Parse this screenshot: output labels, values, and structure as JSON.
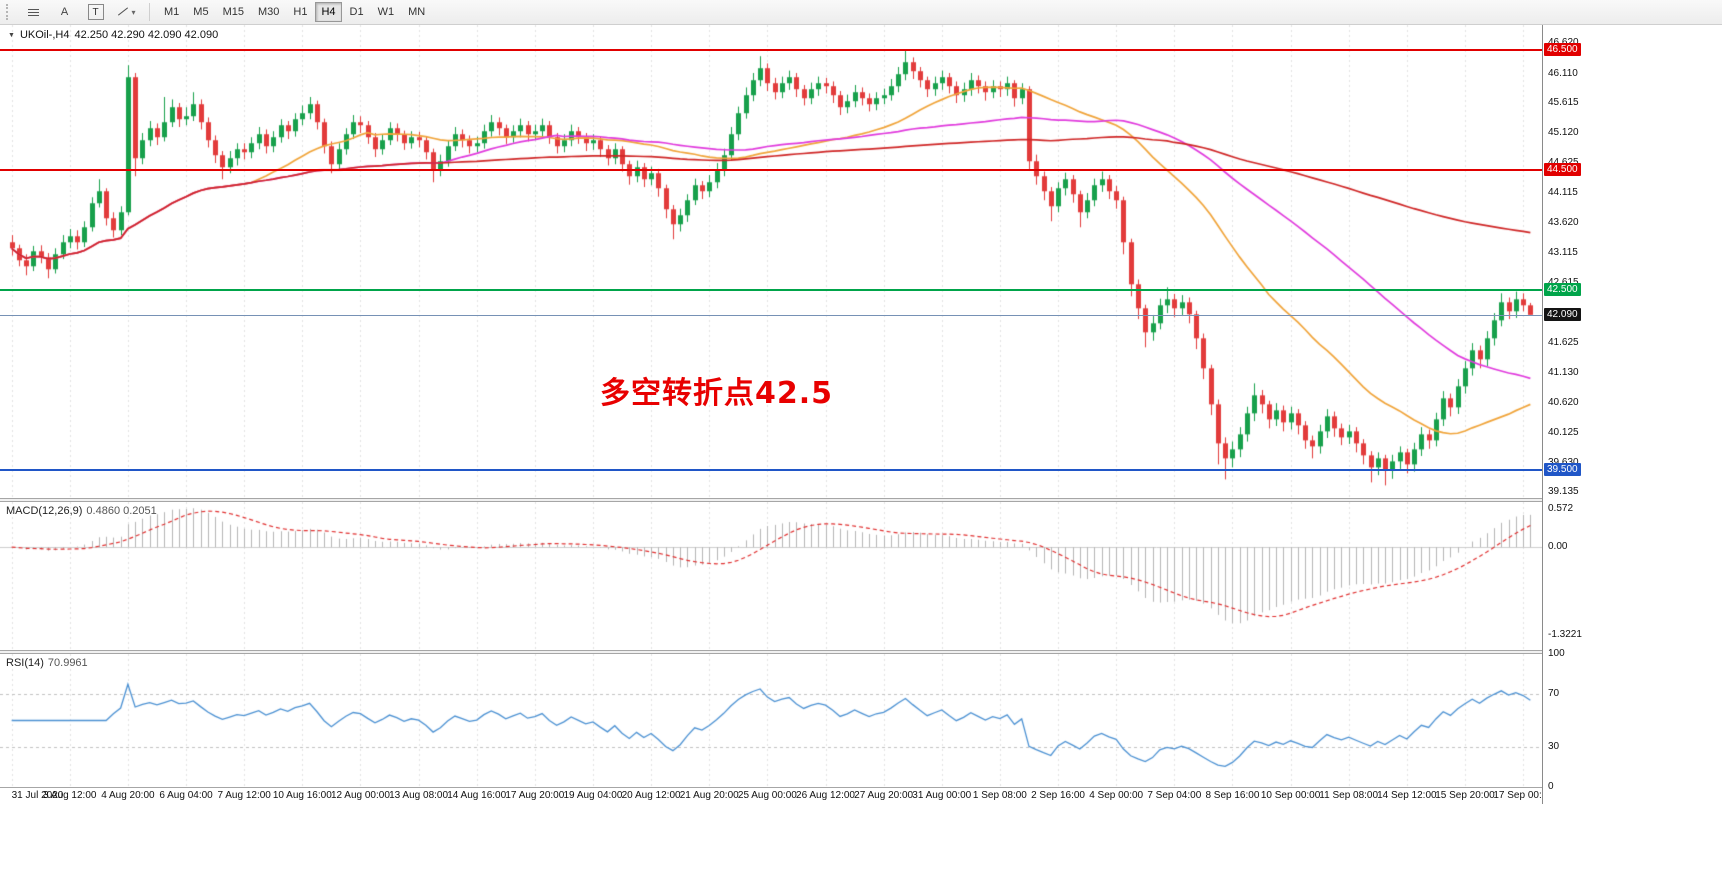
{
  "toolbar": {
    "tool_a_label": "A",
    "tool_t_label": "T",
    "timeframes": [
      "M1",
      "M5",
      "M15",
      "M30",
      "H1",
      "H4",
      "D1",
      "W1",
      "MN"
    ],
    "active_timeframe": "H4",
    "icons": [
      "lines-icon",
      "text-a-icon",
      "text-label-icon",
      "trendline-icon",
      "chevron-down-icon"
    ]
  },
  "header": {
    "dropdown_glyph": "▼",
    "symbol": "UKOil-,H4",
    "quote": "42.250 42.290 42.090 42.090"
  },
  "annotation": {
    "text": "多空转折点42.5",
    "color": "#e80000"
  },
  "chart_data": {
    "type": "candlestick",
    "symbol": "UKOil-",
    "timeframe": "H4",
    "quote": {
      "open": 42.25,
      "high": 42.29,
      "low": 42.09,
      "close": 42.09
    },
    "ylim": [
      39.04,
      46.92
    ],
    "bars_per_label": 8,
    "x_labels": [
      "31 Jul 2020",
      "3 Aug 12:00",
      "4 Aug 20:00",
      "6 Aug 04:00",
      "7 Aug 12:00",
      "10 Aug 16:00",
      "12 Aug 00:00",
      "13 Aug 08:00",
      "14 Aug 16:00",
      "17 Aug 20:00",
      "19 Aug 04:00",
      "20 Aug 12:00",
      "21 Aug 20:00",
      "25 Aug 00:00",
      "26 Aug 12:00",
      "27 Aug 20:00",
      "31 Aug 00:00",
      "1 Sep 08:00",
      "2 Sep 16:00",
      "4 Sep 00:00",
      "7 Sep 04:00",
      "8 Sep 16:00",
      "10 Sep 00:00",
      "11 Sep 08:00",
      "14 Sep 12:00",
      "15 Sep 20:00",
      "17 Sep 00:00"
    ],
    "y_ticks": [
      "46.620",
      "46.110",
      "45.615",
      "45.120",
      "44.625",
      "44.115",
      "43.620",
      "43.115",
      "42.615",
      "41.625",
      "41.130",
      "40.620",
      "40.125",
      "39.630",
      "39.135"
    ],
    "levels": [
      {
        "text": "46.500",
        "value": 46.5,
        "color": "#e10000"
      },
      {
        "text": "44.500",
        "value": 44.5,
        "color": "#e10000"
      },
      {
        "text": "42.500",
        "value": 42.5,
        "color": "#00a44a"
      },
      {
        "text": "39.500",
        "value": 39.5,
        "color": "#2056c7"
      }
    ],
    "price_marker": {
      "text": "42.090",
      "value": 42.09,
      "line_color": "#7691b5",
      "badge_color": "#141414"
    },
    "colors": {
      "up": "#17a04b",
      "down": "#e23b3b",
      "grid": "#e3e3e3"
    },
    "moving_averages": [
      {
        "period": 34,
        "color": "#f0a43a"
      },
      {
        "period": 60,
        "color": "#e03add"
      },
      {
        "period": 144,
        "color": "#cf2626"
      }
    ],
    "indicators": {
      "macd": {
        "title": "MACD(12,26,9)",
        "values": "0.4860 0.2051",
        "fast": 12,
        "slow": 26,
        "signal": 9,
        "range": [
          -1.55,
          0.68
        ],
        "ticks": [
          {
            "text": "0.572",
            "value": 0.572
          },
          {
            "text": "0.00",
            "value": 0
          },
          {
            "text": "-1.3221",
            "value": -1.3221
          }
        ],
        "hist_color": "#b4b4b4",
        "signal_color": "#e02e2e"
      },
      "rsi": {
        "title": "RSI(14)",
        "value": "70.9961",
        "period": 14,
        "range": [
          0,
          100
        ],
        "levels": [
          70,
          30
        ],
        "ticks": [
          {
            "text": "100",
            "value": 100
          },
          {
            "text": "70",
            "value": 70
          },
          {
            "text": "30",
            "value": 30
          },
          {
            "text": "0",
            "value": 0
          }
        ],
        "color": "#4a90d2"
      }
    },
    "candles": [
      [
        43.3,
        43.42,
        43.08,
        43.2
      ],
      [
        43.2,
        43.26,
        42.9,
        43.0
      ],
      [
        43.0,
        43.1,
        42.75,
        42.9
      ],
      [
        42.9,
        43.24,
        42.82,
        43.15
      ],
      [
        43.15,
        43.25,
        42.95,
        43.05
      ],
      [
        43.05,
        43.12,
        42.7,
        42.85
      ],
      [
        42.85,
        43.2,
        42.78,
        43.1
      ],
      [
        43.1,
        43.42,
        43.02,
        43.3
      ],
      [
        43.3,
        43.52,
        43.2,
        43.4
      ],
      [
        43.4,
        43.5,
        43.18,
        43.3
      ],
      [
        43.3,
        43.65,
        43.22,
        43.55
      ],
      [
        43.55,
        44.05,
        43.48,
        43.95
      ],
      [
        43.95,
        44.35,
        43.88,
        44.15
      ],
      [
        44.15,
        44.2,
        43.58,
        43.7
      ],
      [
        43.7,
        43.8,
        43.38,
        43.5
      ],
      [
        43.5,
        43.9,
        43.42,
        43.8
      ],
      [
        43.8,
        46.25,
        43.75,
        46.05
      ],
      [
        46.05,
        46.12,
        44.4,
        44.7
      ],
      [
        44.7,
        45.12,
        44.6,
        45.0
      ],
      [
        45.0,
        45.32,
        44.9,
        45.2
      ],
      [
        45.2,
        45.28,
        44.92,
        45.05
      ],
      [
        45.05,
        45.72,
        44.98,
        45.3
      ],
      [
        45.3,
        45.68,
        45.22,
        45.55
      ],
      [
        45.55,
        45.62,
        45.22,
        45.35
      ],
      [
        45.35,
        45.55,
        45.25,
        45.4
      ],
      [
        45.4,
        45.8,
        45.32,
        45.6
      ],
      [
        45.6,
        45.68,
        45.18,
        45.3
      ],
      [
        45.3,
        45.38,
        44.88,
        45.0
      ],
      [
        45.0,
        45.08,
        44.62,
        44.75
      ],
      [
        44.75,
        44.82,
        44.35,
        44.55
      ],
      [
        44.55,
        44.82,
        44.45,
        44.7
      ],
      [
        44.7,
        44.95,
        44.58,
        44.85
      ],
      [
        44.85,
        44.95,
        44.68,
        44.8
      ],
      [
        44.8,
        45.05,
        44.7,
        44.95
      ],
      [
        44.95,
        45.22,
        44.85,
        45.1
      ],
      [
        45.1,
        45.18,
        44.78,
        44.9
      ],
      [
        44.9,
        45.15,
        44.8,
        45.05
      ],
      [
        45.05,
        45.35,
        44.96,
        45.25
      ],
      [
        45.25,
        45.32,
        45.02,
        45.15
      ],
      [
        45.15,
        45.45,
        45.06,
        45.35
      ],
      [
        45.35,
        45.58,
        45.25,
        45.45
      ],
      [
        45.45,
        45.72,
        45.35,
        45.6
      ],
      [
        45.6,
        45.66,
        45.18,
        45.3
      ],
      [
        45.3,
        45.36,
        44.78,
        44.9
      ],
      [
        44.9,
        44.98,
        44.45,
        44.6
      ],
      [
        44.6,
        44.95,
        44.5,
        44.85
      ],
      [
        44.85,
        45.2,
        44.76,
        45.1
      ],
      [
        45.1,
        45.42,
        45.02,
        45.3
      ],
      [
        45.3,
        45.4,
        45.12,
        45.25
      ],
      [
        45.25,
        45.32,
        44.94,
        45.05
      ],
      [
        45.05,
        45.12,
        44.72,
        44.85
      ],
      [
        44.85,
        45.1,
        44.76,
        45.0
      ],
      [
        45.0,
        45.3,
        44.92,
        45.2
      ],
      [
        45.2,
        45.28,
        44.98,
        45.1
      ],
      [
        45.1,
        45.16,
        44.84,
        44.95
      ],
      [
        44.95,
        45.15,
        44.86,
        45.05
      ],
      [
        45.05,
        45.14,
        44.88,
        45.0
      ],
      [
        45.0,
        45.06,
        44.68,
        44.8
      ],
      [
        44.8,
        44.86,
        44.3,
        44.5
      ],
      [
        44.5,
        44.76,
        44.4,
        44.65
      ],
      [
        44.65,
        45.0,
        44.56,
        44.9
      ],
      [
        44.9,
        45.22,
        44.82,
        45.1
      ],
      [
        45.1,
        45.18,
        44.88,
        45.0
      ],
      [
        45.0,
        45.08,
        44.78,
        44.9
      ],
      [
        44.9,
        45.06,
        44.8,
        44.95
      ],
      [
        44.95,
        45.26,
        44.86,
        45.15
      ],
      [
        45.15,
        45.42,
        45.06,
        45.3
      ],
      [
        45.3,
        45.38,
        45.08,
        45.2
      ],
      [
        45.2,
        45.26,
        44.94,
        45.05
      ],
      [
        45.05,
        45.25,
        44.96,
        45.15
      ],
      [
        45.15,
        45.36,
        45.05,
        45.25
      ],
      [
        45.25,
        45.32,
        44.98,
        45.1
      ],
      [
        45.1,
        45.26,
        45.0,
        45.15
      ],
      [
        45.15,
        45.36,
        45.05,
        45.25
      ],
      [
        45.25,
        45.32,
        44.94,
        45.05
      ],
      [
        45.05,
        45.12,
        44.78,
        44.9
      ],
      [
        44.9,
        45.1,
        44.8,
        45.0
      ],
      [
        45.0,
        45.26,
        44.9,
        45.15
      ],
      [
        45.15,
        45.22,
        44.94,
        45.05
      ],
      [
        45.05,
        45.12,
        44.82,
        44.95
      ],
      [
        44.95,
        45.1,
        44.84,
        45.0
      ],
      [
        45.0,
        45.06,
        44.72,
        44.85
      ],
      [
        44.85,
        44.92,
        44.58,
        44.7
      ],
      [
        44.7,
        44.95,
        44.6,
        44.85
      ],
      [
        44.85,
        44.9,
        44.48,
        44.6
      ],
      [
        44.6,
        44.66,
        44.26,
        44.4
      ],
      [
        44.4,
        44.66,
        44.3,
        44.55
      ],
      [
        44.55,
        44.62,
        44.22,
        44.35
      ],
      [
        44.35,
        44.56,
        44.25,
        44.45
      ],
      [
        44.45,
        44.52,
        44.06,
        44.2
      ],
      [
        44.2,
        44.26,
        43.7,
        43.85
      ],
      [
        43.85,
        43.92,
        43.35,
        43.6
      ],
      [
        43.6,
        43.86,
        43.48,
        43.75
      ],
      [
        43.75,
        44.1,
        43.64,
        44.0
      ],
      [
        44.0,
        44.36,
        43.92,
        44.25
      ],
      [
        44.25,
        44.32,
        44.02,
        44.15
      ],
      [
        44.15,
        44.42,
        44.05,
        44.3
      ],
      [
        44.3,
        44.62,
        44.2,
        44.5
      ],
      [
        44.5,
        44.86,
        44.4,
        44.75
      ],
      [
        44.75,
        45.22,
        44.66,
        45.1
      ],
      [
        45.1,
        45.56,
        45.0,
        45.45
      ],
      [
        45.45,
        45.88,
        45.36,
        45.75
      ],
      [
        45.75,
        46.12,
        45.65,
        46.0
      ],
      [
        46.0,
        46.4,
        45.9,
        46.2
      ],
      [
        46.2,
        46.28,
        45.82,
        45.95
      ],
      [
        45.95,
        46.04,
        45.68,
        45.8
      ],
      [
        45.8,
        46.06,
        45.7,
        45.95
      ],
      [
        45.95,
        46.16,
        45.84,
        46.05
      ],
      [
        46.05,
        46.12,
        45.72,
        45.85
      ],
      [
        45.85,
        45.92,
        45.58,
        45.7
      ],
      [
        45.7,
        45.96,
        45.6,
        45.85
      ],
      [
        45.85,
        46.06,
        45.74,
        45.95
      ],
      [
        45.95,
        46.04,
        45.78,
        45.9
      ],
      [
        45.9,
        45.98,
        45.62,
        45.75
      ],
      [
        45.75,
        45.82,
        45.42,
        45.55
      ],
      [
        45.55,
        45.76,
        45.45,
        45.65
      ],
      [
        45.65,
        45.92,
        45.55,
        45.8
      ],
      [
        45.8,
        45.88,
        45.58,
        45.7
      ],
      [
        45.7,
        45.78,
        45.48,
        45.6
      ],
      [
        45.6,
        45.8,
        45.5,
        45.7
      ],
      [
        45.7,
        45.86,
        45.6,
        45.75
      ],
      [
        45.75,
        46.02,
        45.66,
        45.9
      ],
      [
        45.9,
        46.22,
        45.8,
        46.1
      ],
      [
        46.1,
        46.5,
        46.0,
        46.3
      ],
      [
        46.3,
        46.38,
        46.02,
        46.15
      ],
      [
        46.15,
        46.22,
        45.88,
        46.0
      ],
      [
        46.0,
        46.06,
        45.72,
        45.85
      ],
      [
        45.85,
        46.06,
        45.74,
        45.95
      ],
      [
        45.95,
        46.16,
        45.84,
        46.05
      ],
      [
        46.05,
        46.12,
        45.78,
        45.9
      ],
      [
        45.9,
        45.98,
        45.62,
        45.75
      ],
      [
        45.75,
        45.96,
        45.64,
        45.85
      ],
      [
        45.85,
        46.12,
        45.74,
        46.0
      ],
      [
        46.0,
        46.08,
        45.78,
        45.9
      ],
      [
        45.9,
        45.98,
        45.66,
        45.8
      ],
      [
        45.8,
        46.0,
        45.7,
        45.9
      ],
      [
        45.9,
        45.98,
        45.72,
        45.85
      ],
      [
        45.85,
        46.06,
        45.74,
        45.95
      ],
      [
        45.95,
        46.0,
        45.56,
        45.7
      ],
      [
        45.7,
        45.95,
        45.6,
        45.85
      ],
      [
        45.85,
        45.9,
        44.5,
        44.65
      ],
      [
        44.65,
        44.76,
        44.26,
        44.4
      ],
      [
        44.4,
        44.48,
        44.0,
        44.15
      ],
      [
        44.15,
        44.22,
        43.65,
        43.9
      ],
      [
        43.9,
        44.3,
        43.8,
        44.2
      ],
      [
        44.2,
        44.46,
        44.08,
        44.35
      ],
      [
        44.35,
        44.42,
        43.96,
        44.1
      ],
      [
        44.1,
        44.16,
        43.55,
        43.8
      ],
      [
        43.8,
        44.12,
        43.7,
        44.0
      ],
      [
        44.0,
        44.36,
        43.9,
        44.25
      ],
      [
        44.25,
        44.48,
        44.14,
        44.35
      ],
      [
        44.35,
        44.42,
        44.02,
        44.15
      ],
      [
        44.15,
        44.24,
        43.86,
        44.0
      ],
      [
        44.0,
        44.06,
        43.1,
        43.3
      ],
      [
        43.3,
        43.36,
        42.4,
        42.6
      ],
      [
        42.6,
        42.68,
        42.02,
        42.2
      ],
      [
        42.2,
        42.26,
        41.55,
        41.8
      ],
      [
        41.8,
        42.08,
        41.66,
        41.95
      ],
      [
        41.95,
        42.36,
        41.85,
        42.25
      ],
      [
        42.25,
        42.55,
        42.12,
        42.35
      ],
      [
        42.35,
        42.44,
        42.05,
        42.2
      ],
      [
        42.2,
        42.42,
        42.08,
        42.3
      ],
      [
        42.3,
        42.38,
        41.95,
        42.1
      ],
      [
        42.1,
        42.16,
        41.52,
        41.7
      ],
      [
        41.7,
        41.78,
        41.02,
        41.2
      ],
      [
        41.2,
        41.26,
        40.42,
        40.6
      ],
      [
        40.6,
        40.68,
        39.6,
        39.95
      ],
      [
        39.95,
        40.05,
        39.35,
        39.7
      ],
      [
        39.7,
        39.98,
        39.55,
        39.85
      ],
      [
        39.85,
        40.22,
        39.72,
        40.1
      ],
      [
        40.1,
        40.56,
        39.98,
        40.45
      ],
      [
        40.45,
        40.95,
        40.32,
        40.75
      ],
      [
        40.75,
        40.84,
        40.45,
        40.6
      ],
      [
        40.6,
        40.66,
        40.2,
        40.35
      ],
      [
        40.35,
        40.62,
        40.24,
        40.5
      ],
      [
        40.5,
        40.58,
        40.15,
        40.3
      ],
      [
        40.3,
        40.56,
        40.18,
        40.45
      ],
      [
        40.45,
        40.52,
        40.1,
        40.25
      ],
      [
        40.25,
        40.32,
        39.86,
        40.0
      ],
      [
        40.0,
        40.08,
        39.7,
        39.9
      ],
      [
        39.9,
        40.26,
        39.78,
        40.15
      ],
      [
        40.15,
        40.52,
        40.04,
        40.4
      ],
      [
        40.4,
        40.48,
        40.06,
        40.2
      ],
      [
        40.2,
        40.28,
        39.92,
        40.05
      ],
      [
        40.05,
        40.26,
        39.94,
        40.15
      ],
      [
        40.15,
        40.22,
        39.8,
        39.95
      ],
      [
        39.95,
        40.02,
        39.6,
        39.75
      ],
      [
        39.75,
        39.82,
        39.3,
        39.55
      ],
      [
        39.55,
        39.8,
        39.42,
        39.7
      ],
      [
        39.7,
        39.76,
        39.25,
        39.5
      ],
      [
        39.5,
        39.76,
        39.36,
        39.65
      ],
      [
        39.65,
        39.9,
        39.52,
        39.8
      ],
      [
        39.8,
        39.86,
        39.45,
        39.6
      ],
      [
        39.6,
        39.96,
        39.48,
        39.85
      ],
      [
        39.85,
        40.22,
        39.74,
        40.1
      ],
      [
        40.1,
        40.18,
        39.86,
        40.0
      ],
      [
        40.0,
        40.46,
        39.9,
        40.35
      ],
      [
        40.35,
        40.82,
        40.24,
        40.7
      ],
      [
        40.7,
        40.78,
        40.4,
        40.55
      ],
      [
        40.55,
        41.02,
        40.44,
        40.9
      ],
      [
        40.9,
        41.32,
        40.78,
        41.2
      ],
      [
        41.2,
        41.62,
        41.08,
        41.5
      ],
      [
        41.5,
        41.58,
        41.2,
        41.35
      ],
      [
        41.35,
        41.82,
        41.24,
        41.7
      ],
      [
        41.7,
        42.12,
        41.58,
        42.0
      ],
      [
        42.0,
        42.45,
        41.9,
        42.3
      ],
      [
        42.3,
        42.38,
        42.02,
        42.15
      ],
      [
        42.15,
        42.48,
        42.04,
        42.35
      ],
      [
        42.35,
        42.45,
        42.15,
        42.25
      ],
      [
        42.25,
        42.29,
        42.09,
        42.09
      ]
    ]
  }
}
